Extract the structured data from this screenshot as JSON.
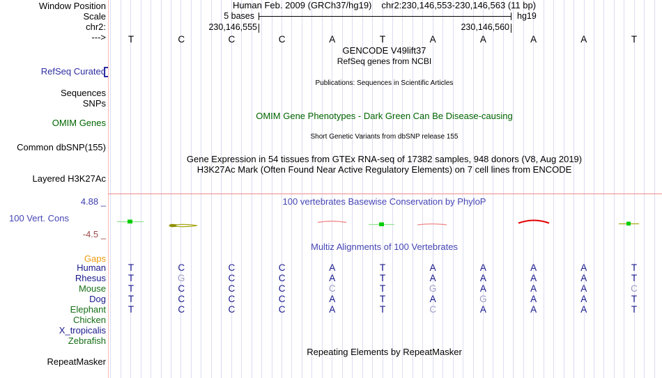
{
  "header": {
    "assembly_title": "Human Feb. 2009 (GRCh37/hg19)",
    "position_title": "chr2:230,146,553-230,146,563 (11 bp)",
    "scale_value": "5 bases",
    "assembly_short": "hg19",
    "coord_left": "230,146,555",
    "coord_right": "230,146,560"
  },
  "sidebar": {
    "window_position": "Window Position",
    "scale": "Scale",
    "chromosome": "chr2:",
    "strand_arrow": "--->",
    "refseq_curated": "RefSeq Curated",
    "sequences": "Sequences",
    "snps": "SNPs",
    "omim_genes": "OMIM Genes",
    "common_dbsnp": "Common dbSNP(155)",
    "layered_h3k27ac": "Layered H3K27Ac",
    "cons_max": "4.88 _",
    "cons_label": "100 Vert. Cons",
    "cons_min": "-4.5 _",
    "gaps": "Gaps",
    "repeatmasker": "RepeatMasker"
  },
  "tracks": {
    "gencode_title": "GENCODE V49lift37",
    "gencode_sub": "RefSeq genes from NCBI",
    "publications": "Publications: Sequences in Scientific Articles",
    "omim_title": "OMIM Gene Phenotypes - Dark Green Can Be Disease-causing",
    "dbsnp_title": "Short Genetic Variants from dbSNP release 155",
    "gtex_title": "Gene Expression in 54 tissues from GTEx RNA-seq of 17382 samples, 948 donors (V8, Aug 2019)",
    "h3k27ac_title": "H3K27Ac Mark (Often Found Near Active Regulatory Elements) on 7 cell lines from ENCODE",
    "phylop_title": "100 vertebrates Basewise Conservation by PhyloP",
    "multiz_title": "Multiz Alignments of 100 Vertebrates",
    "repeat_title": "Repeating Elements by RepeatMasker"
  },
  "ruler_bases": [
    "T",
    "C",
    "C",
    "C",
    "A",
    "T",
    "A",
    "A",
    "A",
    "A",
    "T"
  ],
  "alignment": {
    "rows": [
      {
        "name": "Human",
        "color": "navy",
        "bases": "TCCCATAAAAT",
        "dim": []
      },
      {
        "name": "Rhesus",
        "color": "navy",
        "bases": "TGCCATAAAAT",
        "dim": [
          1
        ]
      },
      {
        "name": "Mouse",
        "color": "green",
        "bases": "TCCCCTGAAAC",
        "dim": [
          4,
          6,
          10
        ]
      },
      {
        "name": "Dog",
        "color": "navy",
        "bases": "TCCCATAGAAT",
        "dim": [
          7
        ]
      },
      {
        "name": "Elephant",
        "color": "green",
        "bases": "TCCCATCAAAT",
        "dim": [
          6
        ]
      },
      {
        "name": "Chicken",
        "color": "green",
        "bases": "",
        "dim": []
      },
      {
        "name": "X_tropicalis",
        "color": "navy",
        "bases": "",
        "dim": []
      },
      {
        "name": "Zebrafish",
        "color": "green",
        "bases": "",
        "dim": []
      }
    ]
  },
  "colors": {
    "base_navy": "#18188c",
    "base_dim": "#9b9bc4",
    "label_blue": "#2d2da0",
    "label_green": "#156e15",
    "omim_green": "#006400",
    "gaps_orange": "#ef9b0f",
    "header_blue": "#4545b5",
    "cons_max_blue": "#3d3dae",
    "cons_min_maroon": "#9f4a4a",
    "gridline": "#dcdcf2",
    "edge_pink": "#ffb8b8",
    "divider_red": "#f08c8c",
    "wiggle_green": "#00ce00",
    "wiggle_olive": "#a8a818",
    "wiggle_red": "#e30000"
  }
}
